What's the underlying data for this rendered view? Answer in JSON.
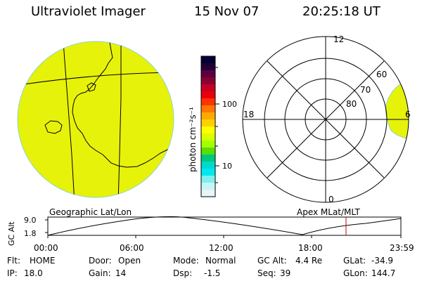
{
  "header": {
    "instrument": "Ultraviolet Imager",
    "date": "15 Nov 07",
    "time": "20:25:18 UT"
  },
  "colorbar": {
    "label": "photon cm⁻²s⁻¹",
    "tick_labels": [
      "100",
      "10"
    ],
    "colors": [
      "#000033",
      "#220033",
      "#5a0040",
      "#8b0033",
      "#c40022",
      "#e8000f",
      "#ff3300",
      "#ff7700",
      "#ffaa00",
      "#ffd000",
      "#ffff00",
      "#d8ff00",
      "#a6ff00",
      "#55e000",
      "#00c87a",
      "#00d8d0",
      "#00e8f0",
      "#7ff0f0",
      "#c8f4f4",
      "#e8f4f8"
    ]
  },
  "panels": {
    "left_caption": "Geographic Lat/Lon",
    "right_caption": "Apex  MLat/MLT",
    "fill_color": "#e7f20a",
    "polar_lt_labels": {
      "top": "12",
      "left": "18",
      "right": "6",
      "bottom": "0"
    },
    "polar_lat_labels": [
      "80",
      "70",
      "60"
    ]
  },
  "timeline": {
    "axis_label": "GC Alt",
    "y_ticks": [
      "9.0",
      "1.8"
    ],
    "x_ticks": [
      "00:00",
      "06:00",
      "12:00",
      "18:00",
      "23:59"
    ],
    "marker_color": "#cc0000"
  },
  "status": {
    "row1": [
      {
        "key": "Flt:",
        "val": "HOME"
      },
      {
        "key": "Door:",
        "val": "Open"
      },
      {
        "key": "Mode:",
        "val": "Normal"
      },
      {
        "key": "GC Alt:",
        "val": "4.4 Re"
      },
      {
        "key": "GLat:",
        "val": "-34.9"
      }
    ],
    "row2": [
      {
        "key": "IP:",
        "val": "18.0"
      },
      {
        "key": "Gain:",
        "val": "14"
      },
      {
        "key": "Dsp:",
        "val": "-1.5"
      },
      {
        "key": "Seq:",
        "val": "39"
      },
      {
        "key": "GLon:",
        "val": "144.7"
      }
    ]
  }
}
